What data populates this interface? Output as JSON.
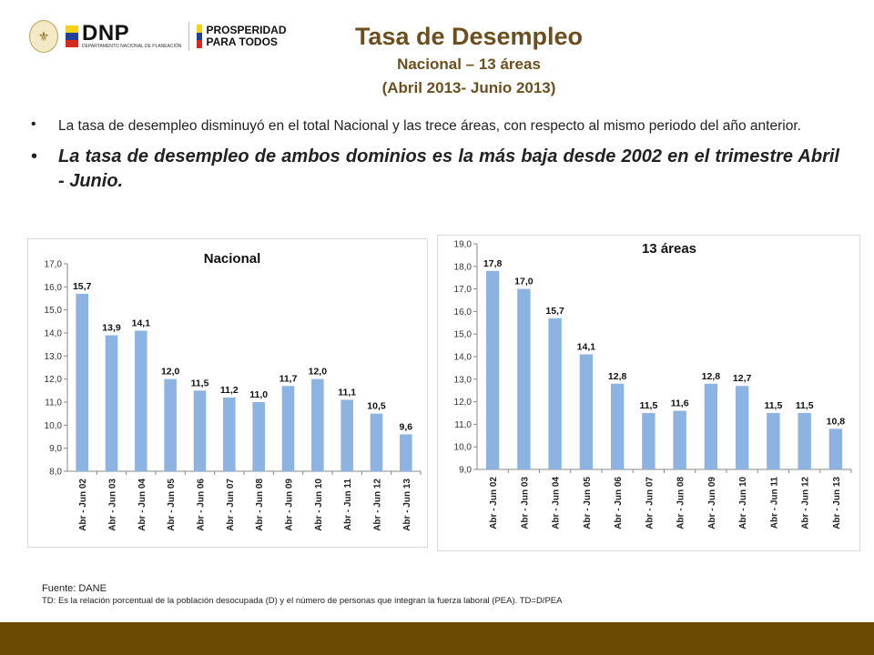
{
  "logos": {
    "dnp": {
      "main": "DNP",
      "sub": "DEPARTAMENTO NACIONAL DE PLANEACIÓN",
      "seal_icon": "coat-of-arms-icon"
    },
    "prosperidad": {
      "line1": "PROSPERIDAD",
      "line2": "PARA TODOS"
    },
    "flag_colors": [
      "#f7d117",
      "#1f3f99",
      "#d52b1e"
    ]
  },
  "header": {
    "title": "Tasa de Desempleo",
    "subtitle": "Nacional – 13 áreas",
    "period": "(Abril 2013- Junio 2013)"
  },
  "bullets": [
    "La tasa de desempleo disminuyó en el total Nacional y las trece áreas, con respecto al mismo periodo del año anterior.",
    "La tasa de desempleo de ambos dominios es la más baja desde 2002 en el trimestre Abril - Junio."
  ],
  "chart_data": [
    {
      "type": "bar",
      "title": "Nacional",
      "categories": [
        "Abr - Jun 02",
        "Abr - Jun 03",
        "Abr - Jun 04",
        "Abr - Jun 05",
        "Abr - Jun 06",
        "Abr - Jun 07",
        "Abr - Jun 08",
        "Abr - Jun 09",
        "Abr - Jun 10",
        "Abr - Jun 11",
        "Abr - Jun 12",
        "Abr - Jun 13"
      ],
      "values": [
        15.7,
        13.9,
        14.1,
        12.0,
        11.5,
        11.2,
        11.0,
        11.7,
        12.0,
        11.1,
        10.5,
        9.6
      ],
      "value_labels": [
        "15,7",
        "13,9",
        "14,1",
        "12,0",
        "11,5",
        "11,2",
        "11,0",
        "11,7",
        "12,0",
        "11,1",
        "10,5",
        "9,6"
      ],
      "ylim": [
        8,
        17
      ],
      "yticks": [
        8,
        9,
        10,
        11,
        12,
        13,
        14,
        15,
        16,
        17
      ],
      "ytick_labels": [
        "8,0",
        "9,0",
        "10,0",
        "11,0",
        "12,0",
        "13,0",
        "14,0",
        "15,0",
        "16,0",
        "17,0"
      ],
      "xlabel": "",
      "ylabel": "",
      "bar_color": "#8db3e2",
      "grid": false
    },
    {
      "type": "bar",
      "title": "13 áreas",
      "categories": [
        "Abr - Jun 02",
        "Abr - Jun 03",
        "Abr - Jun 04",
        "Abr - Jun 05",
        "Abr - Jun 06",
        "Abr - Jun 07",
        "Abr - Jun 08",
        "Abr - Jun 09",
        "Abr - Jun 10",
        "Abr - Jun 11",
        "Abr - Jun 12",
        "Abr - Jun 13"
      ],
      "values": [
        17.8,
        17.0,
        15.7,
        14.1,
        12.8,
        11.5,
        11.6,
        12.8,
        12.7,
        11.5,
        11.5,
        10.8
      ],
      "value_labels": [
        "17,8",
        "17,0",
        "15,7",
        "14,1",
        "12,8",
        "11,5",
        "11,6",
        "12,8",
        "12,7",
        "11,5",
        "11,5",
        "10,8"
      ],
      "ylim": [
        9,
        19
      ],
      "yticks": [
        9,
        10,
        11,
        12,
        13,
        14,
        15,
        16,
        17,
        18,
        19
      ],
      "ytick_labels": [
        "9,0",
        "10,0",
        "11,0",
        "12,0",
        "13,0",
        "14,0",
        "15,0",
        "16,0",
        "17,0",
        "18,0",
        "19,0"
      ],
      "xlabel": "",
      "ylabel": "",
      "bar_color": "#8db3e2",
      "grid": false
    }
  ],
  "footer": {
    "source": "Fuente:  DANE",
    "note": "TD:  Es la relación porcentual de la población desocupada (D) y el número de personas que integran la fuerza laboral (PEA). TD=D/PEA"
  },
  "colors": {
    "title": "#6b4f1e",
    "bottom_bar": "#6a4a02"
  }
}
